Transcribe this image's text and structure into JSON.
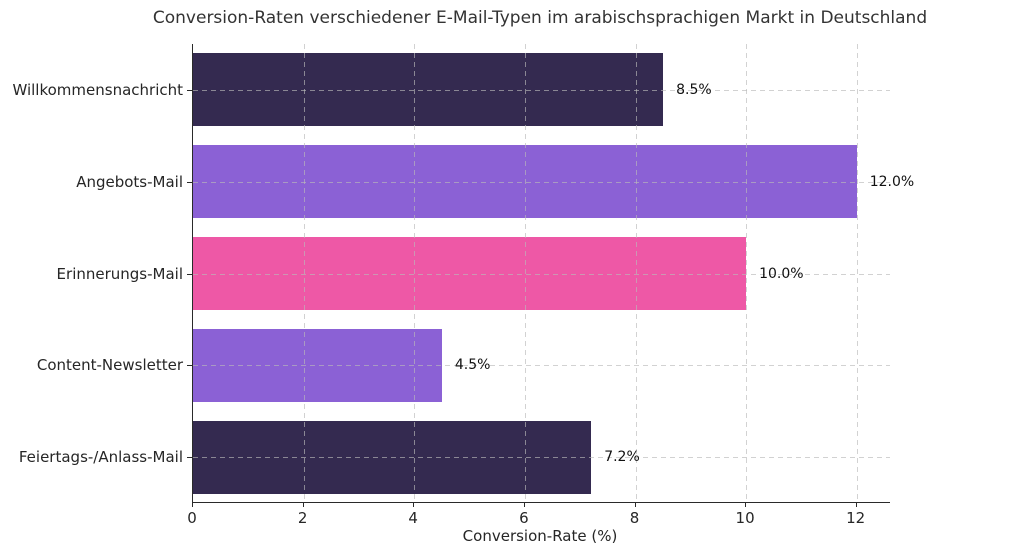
{
  "chart_data": {
    "type": "bar",
    "orientation": "horizontal",
    "title": "Conversion-Raten verschiedener E-Mail-Typen im arabischsprachigen Markt in Deutschland",
    "xlabel": "Conversion-Rate (%)",
    "categories": [
      "Willkommensnachricht",
      "Angebots-Mail",
      "Erinnerungs-Mail",
      "Content-Newsletter",
      "Feiertags-/Anlass-Mail"
    ],
    "values": [
      8.5,
      12.0,
      10.0,
      4.5,
      7.2
    ],
    "value_labels": [
      "8.5%",
      "12.0%",
      "10.0%",
      "4.5%",
      "7.2%"
    ],
    "bar_colors": [
      "#342a50",
      "#8b61d5",
      "#ee58a6",
      "#8b61d5",
      "#342a50"
    ],
    "xticks": [
      0,
      2,
      4,
      6,
      8,
      10,
      12
    ],
    "xtick_labels": [
      "0",
      "2",
      "4",
      "6",
      "8",
      "10",
      "12"
    ],
    "xlim": [
      0,
      12.62
    ],
    "grid": {
      "visible": true,
      "style": "dashed",
      "color": "#b9b9b9"
    },
    "background_color": "#ffffff",
    "legend": "none"
  }
}
